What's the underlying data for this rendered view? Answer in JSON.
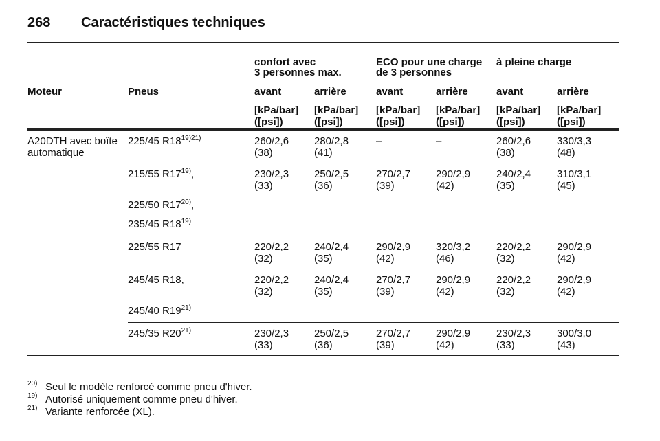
{
  "header": {
    "page": "268",
    "title": "Caractéristiques techniques"
  },
  "table": {
    "group_headers": [
      {
        "line1": "confort avec",
        "line2": "3 personnes max."
      },
      {
        "line1": "ECO pour une charge",
        "line2": "de 3 personnes"
      },
      {
        "line1": "à pleine charge"
      }
    ],
    "columns": [
      "Moteur",
      "Pneus",
      "avant",
      "arrière",
      "avant",
      "arrière",
      "avant",
      "arrière"
    ],
    "units": {
      "line1": "[kPa/bar]",
      "line2": "([psi])"
    },
    "rows": [
      {
        "engine": "A20DTH avec boîte automatique",
        "tires": [
          {
            "name": "225/45 R18",
            "note": "19)21)"
          }
        ],
        "cells": [
          {
            "bar": "260/2,6",
            "psi": "(38)"
          },
          {
            "bar": "280/2,8",
            "psi": "(41)"
          },
          {
            "bar": "–"
          },
          {
            "bar": "–"
          },
          {
            "bar": "260/2,6",
            "psi": "(38)"
          },
          {
            "bar": "330/3,3",
            "psi": "(48)"
          }
        ]
      },
      {
        "tires": [
          {
            "name": "215/55 R17",
            "note": "19)",
            "suffix": ","
          },
          {
            "name": "225/50 R17",
            "note": "20)",
            "suffix": ","
          },
          {
            "name": "235/45 R18",
            "note": "19)"
          }
        ],
        "cells": [
          {
            "bar": "230/2,3",
            "psi": "(33)"
          },
          {
            "bar": "250/2,5",
            "psi": "(36)"
          },
          {
            "bar": "270/2,7",
            "psi": "(39)"
          },
          {
            "bar": "290/2,9",
            "psi": "(42)"
          },
          {
            "bar": "240/2,4",
            "psi": "(35)"
          },
          {
            "bar": "310/3,1",
            "psi": "(45)"
          }
        ]
      },
      {
        "tires": [
          {
            "name": "225/55 R17"
          }
        ],
        "cells": [
          {
            "bar": "220/2,2",
            "psi": "(32)"
          },
          {
            "bar": "240/2,4",
            "psi": "(35)"
          },
          {
            "bar": "290/2,9",
            "psi": "(42)"
          },
          {
            "bar": "320/3,2",
            "psi": "(46)"
          },
          {
            "bar": "220/2,2",
            "psi": "(32)"
          },
          {
            "bar": "290/2,9",
            "psi": "(42)"
          }
        ]
      },
      {
        "tires": [
          {
            "name": "245/45 R18,"
          },
          {
            "name": "245/40 R19",
            "note": "21)"
          }
        ],
        "cells": [
          {
            "bar": "220/2,2",
            "psi": "(32)"
          },
          {
            "bar": "240/2,4",
            "psi": "(35)"
          },
          {
            "bar": "270/2,7",
            "psi": "(39)"
          },
          {
            "bar": "290/2,9",
            "psi": "(42)"
          },
          {
            "bar": "220/2,2",
            "psi": "(32)"
          },
          {
            "bar": "290/2,9",
            "psi": "(42)"
          }
        ]
      },
      {
        "tires": [
          {
            "name": "245/35 R20",
            "note": "21)"
          }
        ],
        "cells": [
          {
            "bar": "230/2,3",
            "psi": "(33)"
          },
          {
            "bar": "250/2,5",
            "psi": "(36)"
          },
          {
            "bar": "270/2,7",
            "psi": "(39)"
          },
          {
            "bar": "290/2,9",
            "psi": "(42)"
          },
          {
            "bar": "230/2,3",
            "psi": "(33)"
          },
          {
            "bar": "300/3,0",
            "psi": "(43)"
          }
        ]
      }
    ]
  },
  "footnotes": [
    {
      "note": "20)",
      "text": "Seul le modèle renforcé comme pneu d'hiver."
    },
    {
      "note": "19)",
      "text": "Autorisé uniquement comme pneu d'hiver."
    },
    {
      "note": "21)",
      "text": "Variante renforcée (XL)."
    }
  ]
}
